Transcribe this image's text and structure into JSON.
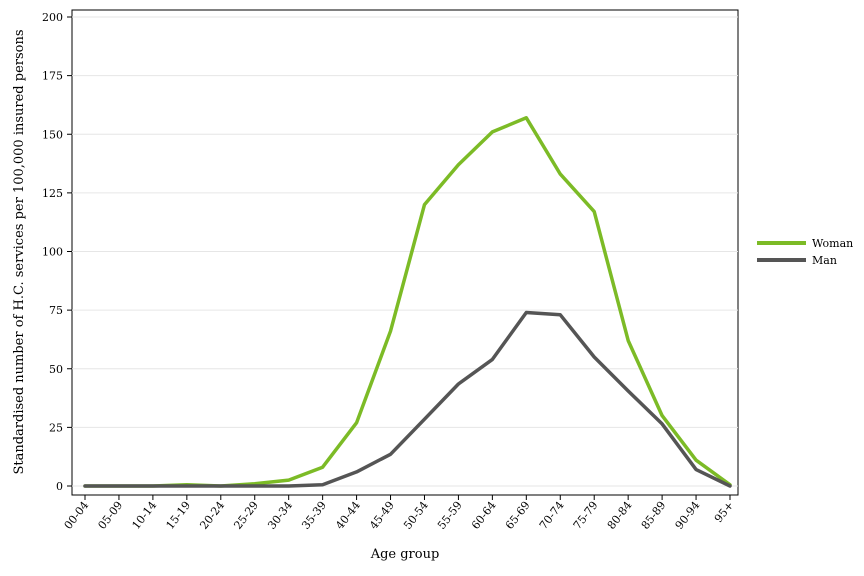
{
  "chart_data": {
    "type": "line",
    "xlabel": "Age group",
    "ylabel": "Standardised number of H.C. services per 100,000 insured persons",
    "ylim": [
      0,
      200
    ],
    "yticks": [
      0,
      25,
      50,
      75,
      100,
      125,
      150,
      175,
      200
    ],
    "grid": true,
    "legend_position": "right",
    "categories": [
      "00-04",
      "05-09",
      "10-14",
      "15-19",
      "20-24",
      "25-29",
      "30-34",
      "35-39",
      "40-44",
      "45-49",
      "50-54",
      "55-59",
      "60-64",
      "65-69",
      "70-74",
      "75-79",
      "80-84",
      "85-89",
      "90-94",
      "95+"
    ],
    "series": [
      {
        "name": "Woman",
        "color": "#7cbb26",
        "values": [
          0,
          0,
          0,
          0.5,
          0,
          1,
          2.5,
          8,
          27,
          66,
          120,
          137,
          151,
          157,
          133,
          117,
          62,
          30,
          11,
          0.5
        ]
      },
      {
        "name": "Man",
        "color": "#555555",
        "values": [
          0,
          0,
          0,
          0,
          0,
          0,
          0,
          0.5,
          6,
          13.5,
          28.5,
          43.5,
          54,
          74,
          73,
          55,
          40.5,
          26.5,
          7,
          0
        ]
      }
    ]
  }
}
